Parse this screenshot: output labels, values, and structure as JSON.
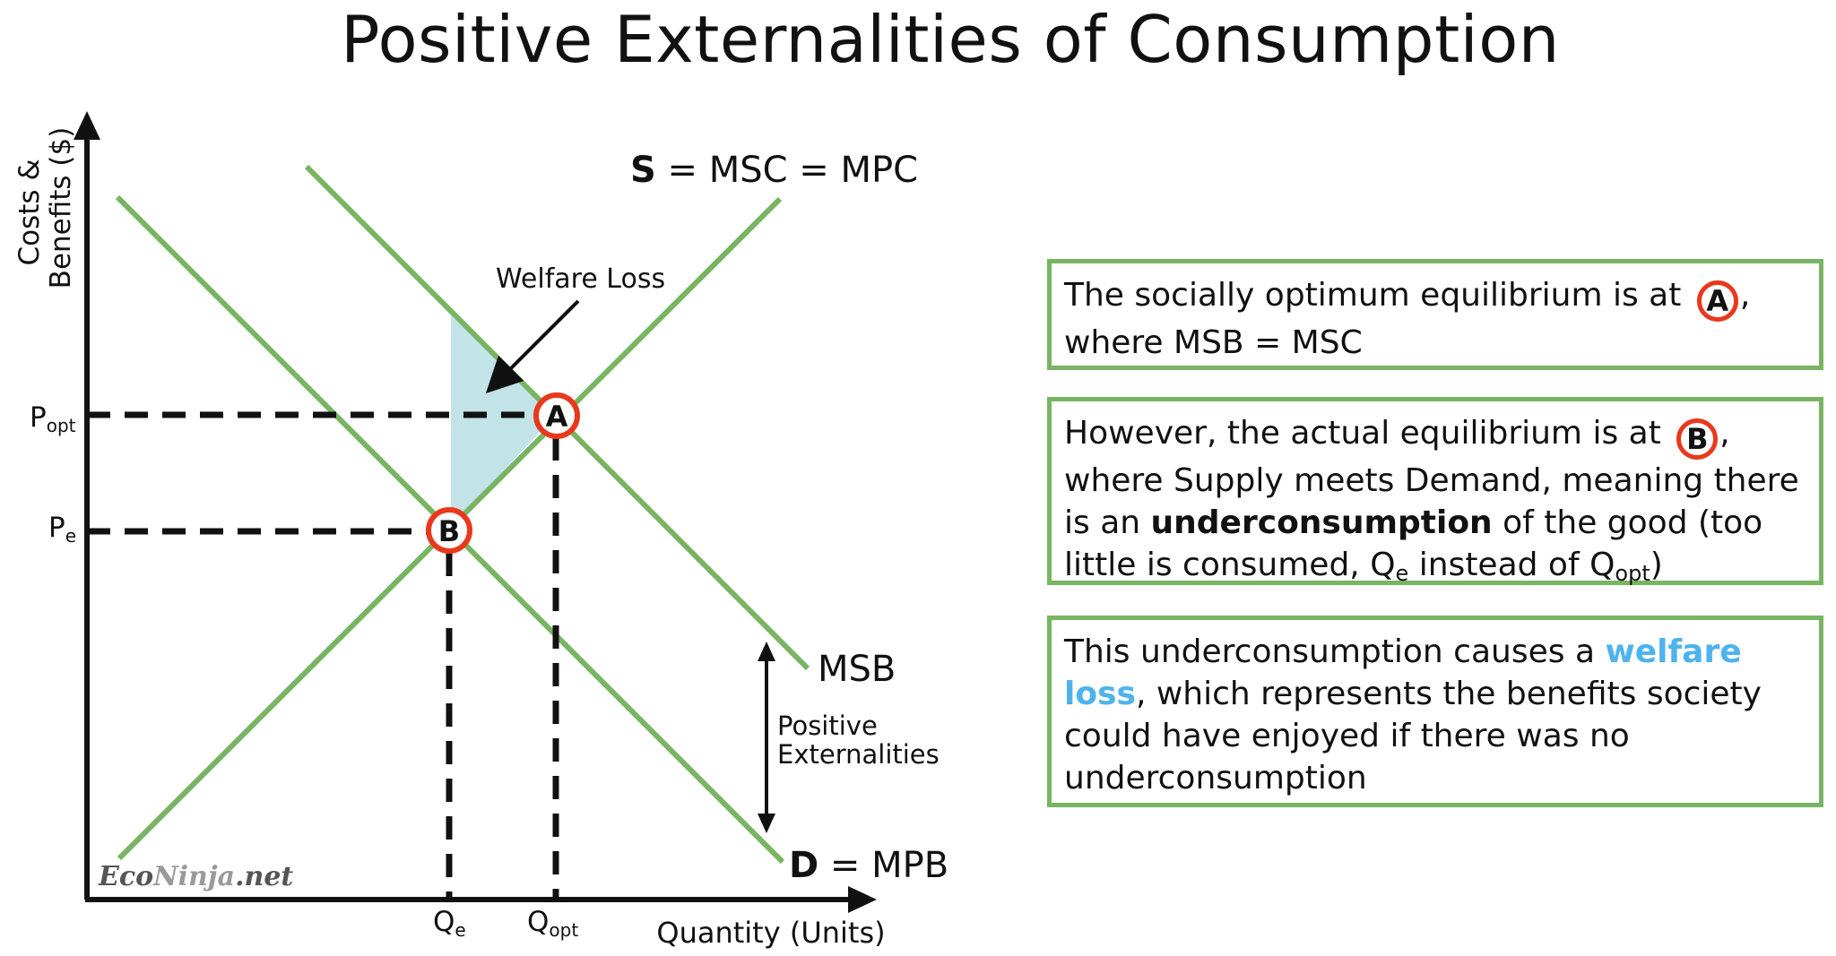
{
  "title": "Positive Externalities of Consumption",
  "axes": {
    "y_label_line1": "Costs &",
    "y_label_line2": "Benefits ($)",
    "x_label": "Quantity (Units)"
  },
  "ticks": {
    "p_opt_main": "P",
    "p_opt_sub": "opt",
    "p_e_main": "P",
    "p_e_sub": "e",
    "q_e_main": "Q",
    "q_e_sub": "e",
    "q_opt_main": "Q",
    "q_opt_sub": "opt"
  },
  "curves": {
    "supply_bold": "S",
    "supply_rest": " = MSC = MPC",
    "msb": "MSB",
    "demand_bold": "D",
    "demand_rest": " = MPB"
  },
  "annotations": {
    "welfare_loss": "Welfare Loss",
    "positive_ext_line1": "Positive",
    "positive_ext_line2": "Externalities"
  },
  "points": {
    "a": "A",
    "b": "B"
  },
  "watermark": {
    "part1": "Eco",
    "part2": "Ninja",
    "part3": ".net"
  },
  "boxes": {
    "box1": {
      "text1": "The socially optimum equilibrium is at ",
      "badge": "A",
      "text2": ", where MSB = MSC"
    },
    "box2": {
      "text1": "However, the actual equilibrium is at ",
      "badge": "B",
      "text2": ", where Supply meets Demand, meaning there is an ",
      "bold": "underconsumption",
      "text3": " of the good (too little is consumed, Q",
      "sub1": "e",
      "text4": " instead of Q",
      "sub2": "opt",
      "text5": ")"
    },
    "box3": {
      "text1": "This underconsumption causes a ",
      "hl1": "welfare",
      "space": " ",
      "hl2": "loss",
      "text2": ", which represents the benefits society could have enjoyed if there was no underconsumption"
    }
  },
  "colors": {
    "curve": "#78b562",
    "shade": "#c2e3e8",
    "badge_ring": "#e8391d",
    "highlight": "#4db3ec",
    "watermark_dark": "#555555",
    "watermark_light": "#9a9a9a"
  }
}
